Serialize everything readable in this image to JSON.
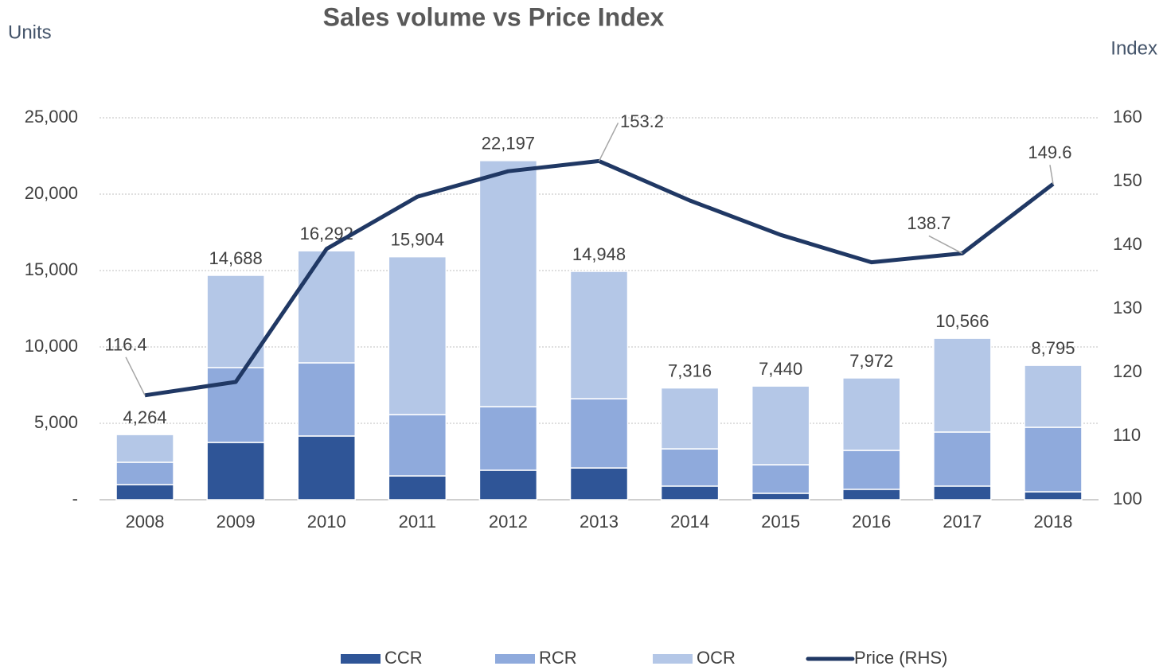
{
  "chart_data": {
    "type": "stacked-bar-line",
    "title": "Sales volume vs Price Index",
    "y_label": "Units",
    "y2_label": "Index",
    "categories": [
      "2008",
      "2009",
      "2010",
      "2011",
      "2012",
      "2013",
      "2014",
      "2015",
      "2016",
      "2017",
      "2018"
    ],
    "ylim": [
      0,
      25000
    ],
    "yticks": [
      {
        "value": 0,
        "label": "-"
      },
      {
        "value": 5000,
        "label": "5,000"
      },
      {
        "value": 10000,
        "label": "10,000"
      },
      {
        "value": 15000,
        "label": "15,000"
      },
      {
        "value": 20000,
        "label": "20,000"
      },
      {
        "value": 25000,
        "label": "25,000"
      }
    ],
    "y2lim": [
      100,
      160
    ],
    "y2ticks": [
      100,
      110,
      120,
      130,
      140,
      150,
      160
    ],
    "grid": true,
    "legend": "bottom",
    "series": [
      {
        "name": "CCR",
        "type": "bar",
        "color": "#2f5597",
        "values": [
          990,
          3750,
          4170,
          1560,
          1930,
          2080,
          890,
          420,
          680,
          890,
          520
        ]
      },
      {
        "name": "RCR",
        "type": "bar",
        "color": "#8faadc",
        "values": [
          1460,
          4900,
          4790,
          4010,
          4160,
          4530,
          2440,
          1870,
          2550,
          3540,
          4220
        ]
      },
      {
        "name": "OCR",
        "type": "bar",
        "color": "#b4c7e7",
        "values": [
          1814,
          6038,
          7332,
          10334,
          16107,
          8338,
          3986,
          5150,
          4742,
          6136,
          4055
        ]
      },
      {
        "name": "Price (RHS)",
        "type": "line",
        "axis": "y2",
        "color": "#203864",
        "values": [
          116.4,
          118.5,
          139.4,
          147.6,
          151.6,
          153.2,
          147.0,
          141.6,
          137.3,
          138.7,
          149.6
        ],
        "value_labels": [
          "116.4",
          null,
          null,
          null,
          null,
          "153.2",
          null,
          null,
          null,
          "138.7",
          "149.6"
        ]
      }
    ],
    "totals": [
      4264,
      14688,
      16292,
      15904,
      22197,
      14948,
      7316,
      7440,
      7972,
      10566,
      8795
    ],
    "total_labels": [
      "4,264",
      "14,688",
      "16,292",
      "15,904",
      "22,197",
      "14,948",
      "7,316",
      "7,440",
      "7,972",
      "10,566",
      "8,795"
    ]
  }
}
